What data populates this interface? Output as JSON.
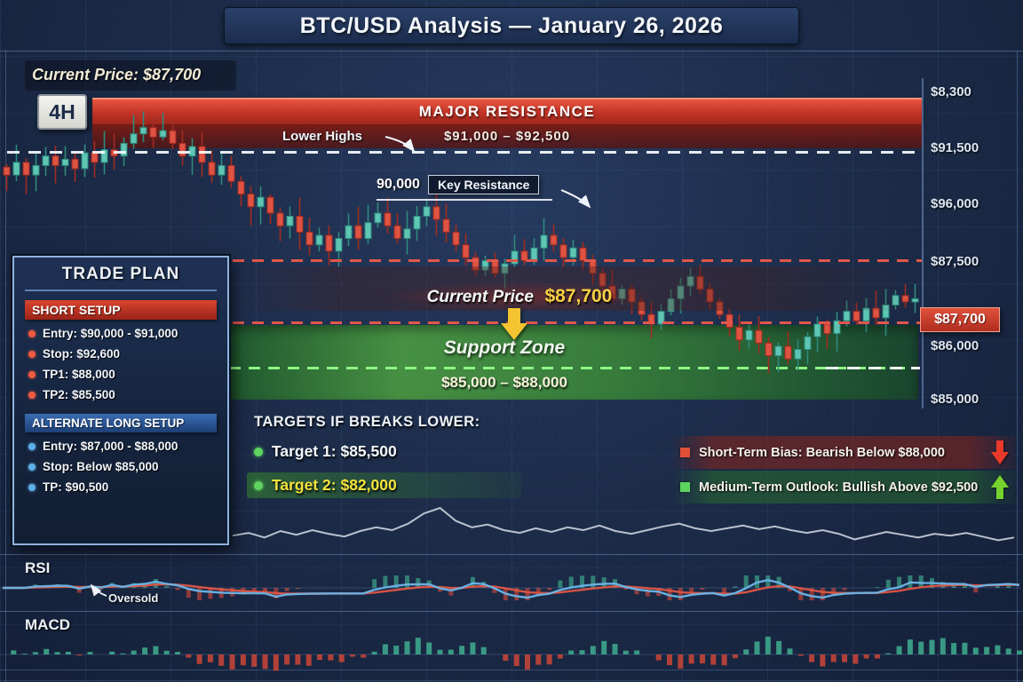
{
  "title": "BTC/USD Analysis — January 26, 2026",
  "header": {
    "current_price": "Current Price: $87,700",
    "timeframe": "4H"
  },
  "resistance": {
    "label": "MAJOR RESISTANCE",
    "range": "$91,000 – $92,500"
  },
  "annotations": {
    "lower_highs": "Lower Highs",
    "key_resistance_price": "90,000",
    "key_resistance_label": "Key Resistance",
    "current_price_prefix": "Current Price",
    "current_price_value": "$87,700",
    "support_zone_title": "Support Zone",
    "support_zone_range": "$85,000 – $88,000",
    "oversold": "Oversold"
  },
  "price_axis": {
    "labels": [
      "$8,300",
      "$91,500",
      "$96,000",
      "$87,500",
      "$86,000",
      "$85,000"
    ],
    "current_tag": "$87,700"
  },
  "trade_plan": {
    "title": "TRADE PLAN",
    "short_setup": {
      "title": "SHORT SETUP",
      "items": [
        "Entry:  $90,000 - $91,000",
        "Stop:  $92,600",
        "TP1:  $88,000",
        "TP2:  $85,500"
      ]
    },
    "long_setup": {
      "title": "ALTERNATE LONG SETUP",
      "items": [
        "Entry:  $87,000 - $88,000",
        "Stop: Below $85,000",
        "TP:  $90,500"
      ]
    }
  },
  "targets": {
    "title": "TARGETS IF BREAKS LOWER:",
    "target1": "Target 1: $85,500",
    "target2": "Target 2: $82,000"
  },
  "bias": {
    "short_term": "Short-Term Bias: Bearish Below $88,000",
    "medium_term": "Medium-Term Outlook: Bullish Above $92,500"
  },
  "indicators": {
    "rsi": "RSI",
    "macd": "MACD"
  },
  "colors": {
    "candle_up_fill": "#5fc6b5",
    "candle_up_stroke": "#2d8a7c",
    "candle_down_fill": "#df5342",
    "candle_down_stroke": "#9f2c21",
    "rsi_fast_line": "#6cb6e8",
    "rsi_slow_line": "#e05545",
    "macd_up": "#3fae8f",
    "macd_down": "#cc4737",
    "highlight_yellow": "#f7d043",
    "resistance_red": "#c03326",
    "support_green": "#3f9e4a"
  },
  "chart_data": {
    "type": "candlestick",
    "symbol": "BTC/USD",
    "timeframe": "4H",
    "unit": "USD thousands",
    "closes": [
      91.6,
      92.0,
      91.6,
      91.9,
      92.2,
      91.9,
      92.1,
      91.8,
      92.3,
      92.0,
      92.4,
      92.2,
      92.6,
      92.9,
      93.1,
      92.8,
      93.0,
      92.6,
      92.2,
      92.5,
      92.0,
      91.6,
      91.9,
      91.4,
      91.0,
      90.6,
      90.9,
      90.4,
      90.0,
      90.3,
      89.8,
      89.4,
      89.7,
      89.2,
      89.6,
      90.0,
      89.6,
      90.1,
      90.4,
      90.0,
      89.6,
      89.9,
      90.3,
      90.6,
      90.2,
      89.8,
      89.4,
      89.0,
      88.6,
      88.9,
      88.5,
      88.8,
      89.2,
      88.9,
      89.3,
      89.7,
      89.4,
      89.0,
      89.3,
      88.9,
      88.5,
      88.1,
      87.7,
      88.0,
      87.6,
      87.2,
      86.9,
      87.3,
      87.7,
      88.1,
      88.4,
      88.0,
      87.6,
      87.2,
      86.8,
      86.4,
      86.7,
      86.3,
      85.9,
      86.2,
      85.8,
      86.1,
      86.5,
      86.9,
      86.6,
      87.0,
      87.3,
      87.0,
      87.4,
      87.1,
      87.5,
      87.8,
      87.6,
      87.7
    ],
    "levels": {
      "major_resistance": [
        91000,
        92500
      ],
      "key_resistance": 90000,
      "resistance_line": 87500,
      "current_price": 87700,
      "support_zone": [
        85000,
        88000
      ],
      "targets_if_breaks_lower": [
        85500,
        82000
      ]
    },
    "sparkline": [
      0.4,
      0.46,
      0.36,
      0.5,
      0.42,
      0.52,
      0.44,
      0.38,
      0.5,
      0.58,
      0.52,
      0.66,
      0.88,
      1.0,
      0.72,
      0.58,
      0.64,
      0.52,
      0.46,
      0.56,
      0.48,
      0.58,
      0.52,
      0.62,
      0.5,
      0.44,
      0.52,
      0.6,
      0.66,
      0.56,
      0.5,
      0.56,
      0.62,
      0.54,
      0.6,
      0.52,
      0.46,
      0.52,
      0.44,
      0.32,
      0.4,
      0.48,
      0.42,
      0.36,
      0.44,
      0.4,
      0.46,
      0.38,
      0.3,
      0.36
    ],
    "title": "BTC/USD Analysis — January 26, 2026"
  }
}
